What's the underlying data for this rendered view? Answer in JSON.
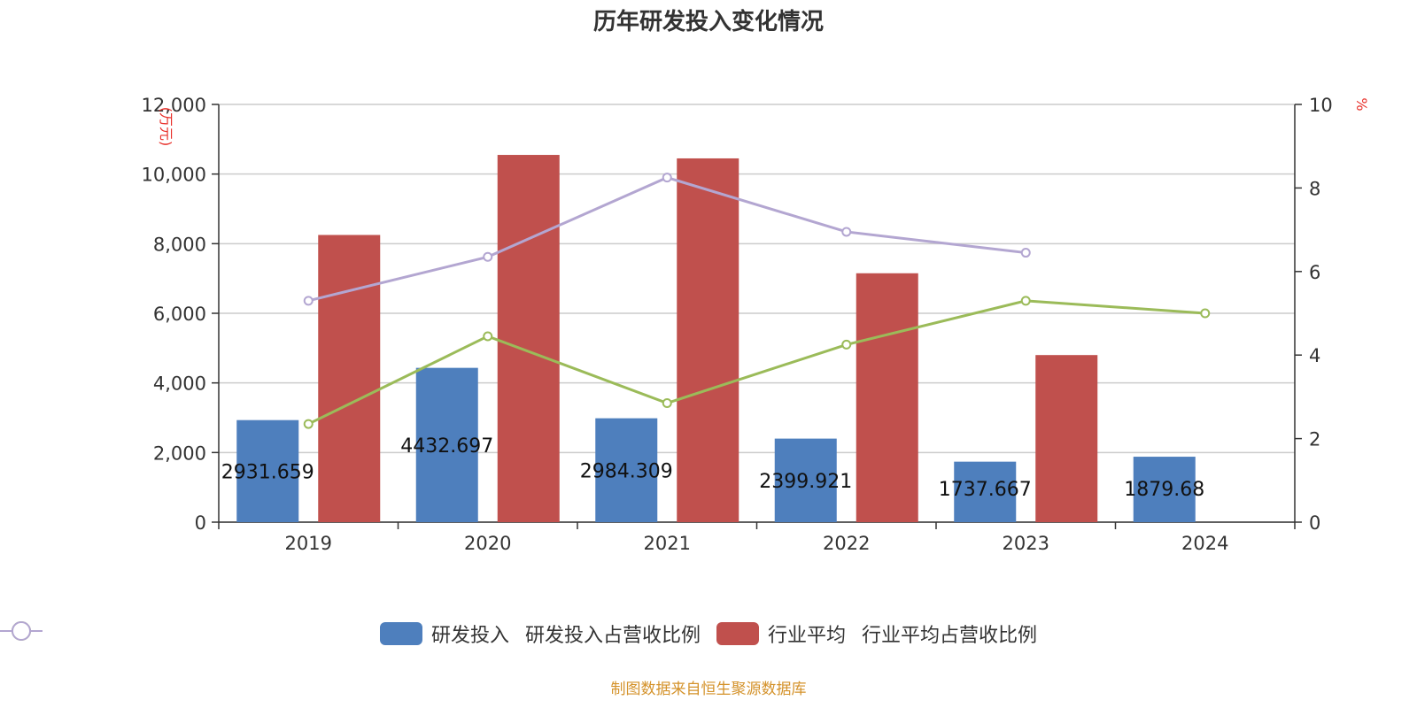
{
  "chart_data": {
    "type": "bar",
    "title": "历年研发投入变化情况",
    "categories": [
      "2019",
      "2020",
      "2021",
      "2022",
      "2023",
      "2024"
    ],
    "y_left": {
      "unit": "万元",
      "ylim": [
        0,
        12000
      ],
      "ticks": [
        0,
        2000,
        4000,
        6000,
        8000,
        10000,
        12000
      ],
      "tick_labels": [
        "0",
        "2,000",
        "4,000",
        "6,000",
        "8,000",
        "10,000",
        "12,000"
      ]
    },
    "y_right": {
      "unit": "%",
      "ylim": [
        0,
        10
      ],
      "ticks": [
        0,
        2,
        4,
        6,
        8,
        10
      ],
      "tick_labels": [
        "0",
        "2",
        "4",
        "6",
        "8",
        "10"
      ]
    },
    "grid": true,
    "legend_position": "bottom",
    "series": [
      {
        "name": "研发投入",
        "type": "bar",
        "axis": "left",
        "color": "#4e7fbd",
        "values": [
          2931.659,
          4432.697,
          2984.309,
          2399.921,
          1737.667,
          1879.68
        ],
        "labels": [
          "2931.659",
          "4432.697",
          "2984.309",
          "2399.921",
          "1737.667",
          "1879.68"
        ]
      },
      {
        "name": "研发投入占营收比例",
        "type": "line",
        "axis": "right",
        "color": "#9bbb59",
        "values": [
          2.35,
          4.45,
          2.85,
          4.25,
          5.3,
          5.0
        ]
      },
      {
        "name": "行业平均",
        "type": "bar",
        "axis": "left",
        "color": "#c0504d",
        "values": [
          8250,
          10550,
          10450,
          7150,
          4800,
          null
        ]
      },
      {
        "name": "行业平均占营收比例",
        "type": "line",
        "axis": "right",
        "color": "#b3a6d1",
        "values": [
          5.3,
          6.35,
          8.25,
          6.95,
          6.45,
          null
        ]
      }
    ]
  },
  "footer": {
    "source": "制图数据来自恒生聚源数据库"
  }
}
